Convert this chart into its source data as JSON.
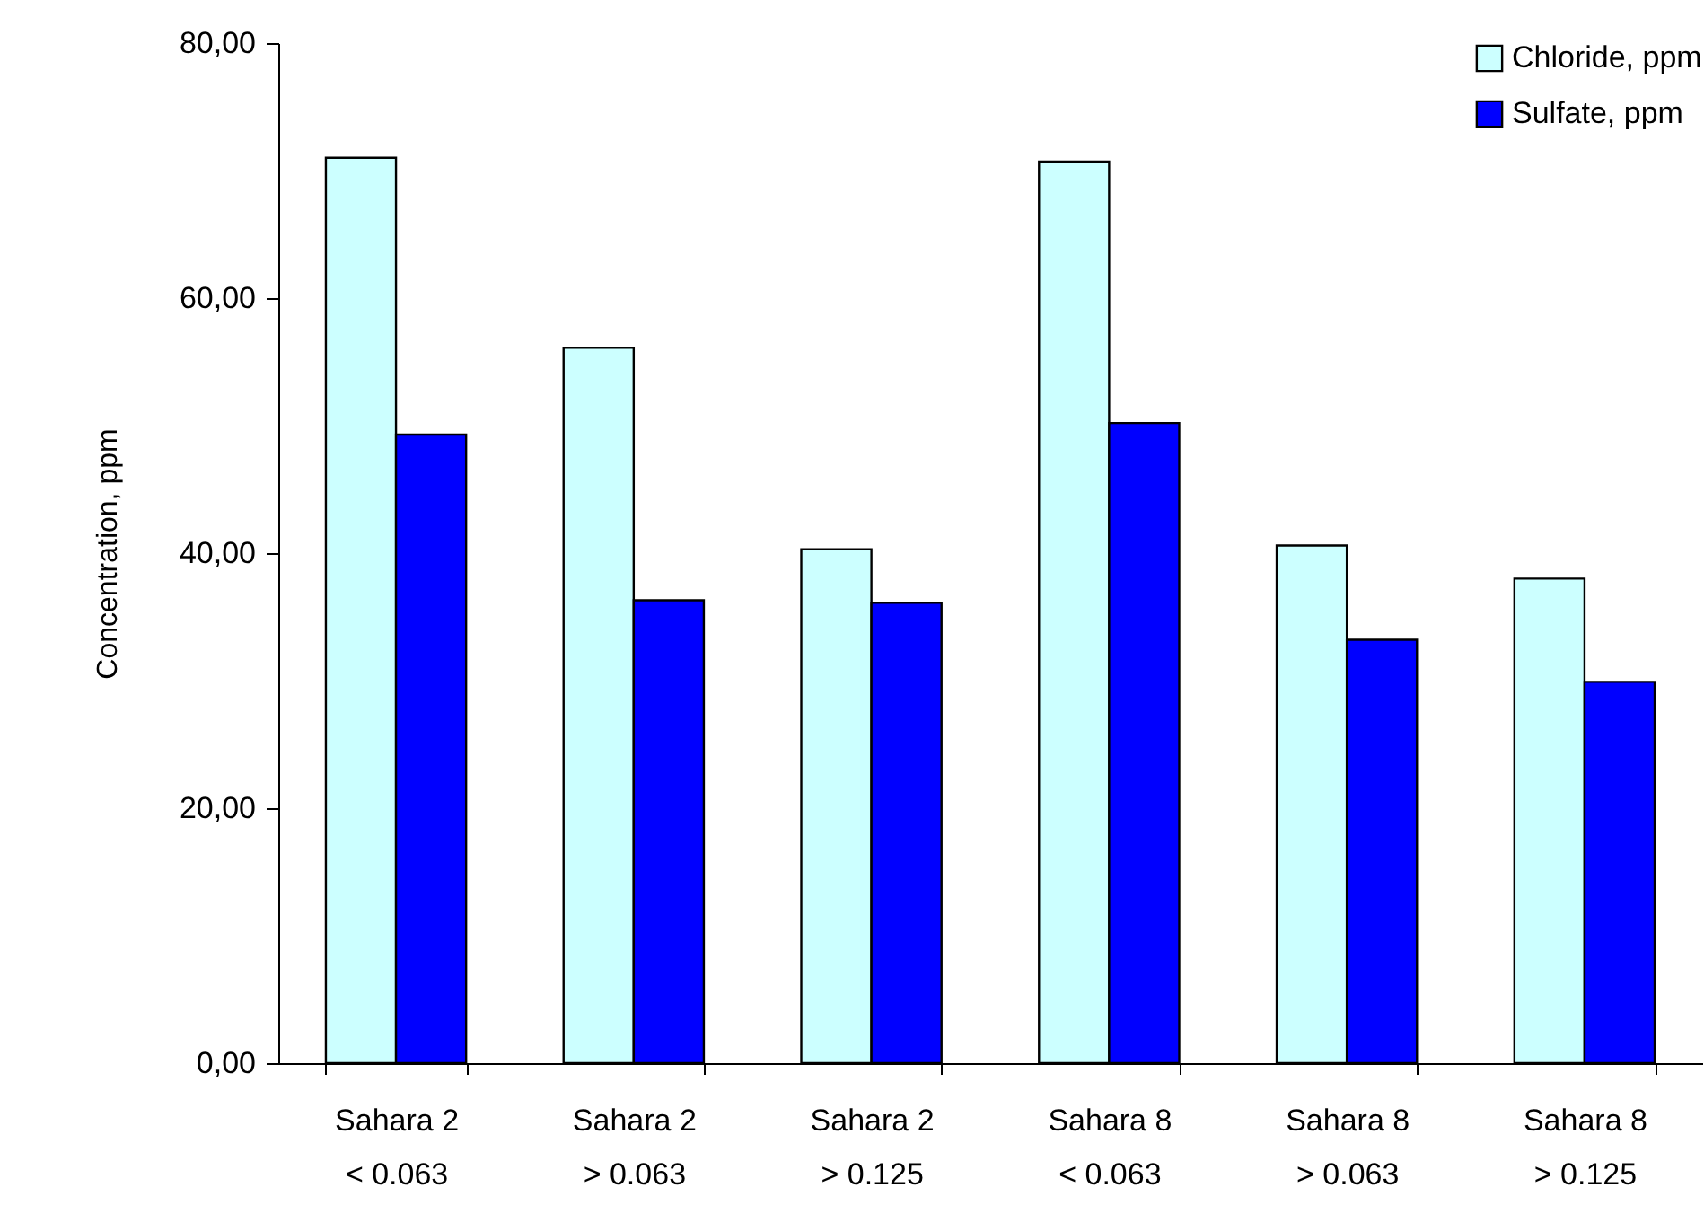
{
  "chart_data": {
    "type": "bar",
    "ylabel": "Concentration, ppm",
    "categories": [
      "Sahara 2\n< 0.063",
      "Sahara 2\n> 0.063",
      "Sahara 2\n> 0.125",
      "Sahara 8\n< 0.063",
      "Sahara 8\n> 0.063",
      "Sahara 8\n> 0.125"
    ],
    "series": [
      {
        "name": "Chloride, ppm",
        "color": "#ccffff",
        "values": [
          71.0,
          56.1,
          40.3,
          70.7,
          40.6,
          38.0
        ]
      },
      {
        "name": "Sulfate, ppm",
        "color": "#0000ff",
        "values": [
          49.3,
          36.3,
          36.1,
          50.2,
          33.2,
          29.9
        ]
      }
    ],
    "ylim": [
      0,
      80
    ],
    "yticks": [
      {
        "value": 0,
        "label": "0,00"
      },
      {
        "value": 20,
        "label": "20,00"
      },
      {
        "value": 40,
        "label": "40,00"
      },
      {
        "value": 60,
        "label": "60,00"
      },
      {
        "value": 80,
        "label": "80,00"
      }
    ],
    "grid": false,
    "legend": "top right"
  }
}
